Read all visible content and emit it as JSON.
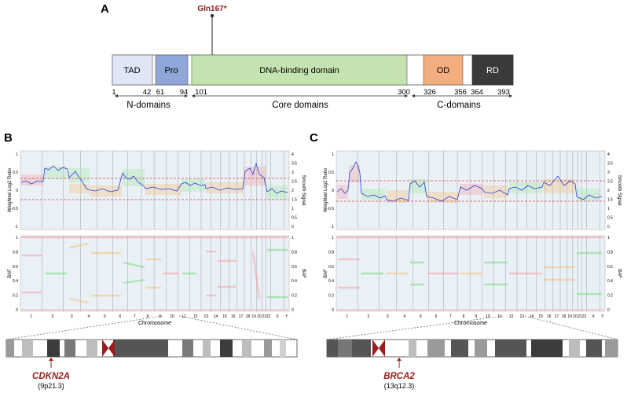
{
  "panel_a": {
    "label": "A",
    "mutation": "Gln167*",
    "domains": [
      {
        "name": "TAD",
        "start": "1",
        "end": "42",
        "color": "#dfe6f5"
      },
      {
        "name": "Pro",
        "start": "61",
        "end": "94",
        "color": "#8fa7d8"
      },
      {
        "name": "DNA-binding domain",
        "start": "101",
        "end": "300",
        "color": "#c5e3b0"
      },
      {
        "name": "OD",
        "start": "326",
        "end": "356",
        "color": "#f3ae80"
      },
      {
        "name": "RD",
        "start": "364",
        "end": "393",
        "color": "#3a3a3a"
      }
    ],
    "groups": [
      "N-domains",
      "Core domains",
      "C-domains"
    ]
  },
  "panel_b": {
    "label": "B",
    "y_left_label": "Weighted Log2 Ratio",
    "y_right_label": "Smooth Signal",
    "baf_label": "BAF",
    "x_label": "Chromosome",
    "gene": "CDKN2A",
    "locus": "(9p21.3)"
  },
  "panel_c": {
    "label": "C",
    "y_left_label": "Weighted Log2 Ratio",
    "y_right_label": "Smooth Signal",
    "baf_label": "BAF",
    "x_label": "Chromosome",
    "gene": "BRCA2",
    "locus": "(13q12.3)"
  },
  "axes": {
    "log2_ticks": [
      "1",
      "0.5",
      "0",
      "-0.5",
      "-1"
    ],
    "smooth_ticks": [
      "4",
      "3.5",
      "3",
      "2.5",
      "2",
      "1.5",
      "1",
      "0.5",
      "0"
    ],
    "baf_ticks": [
      "1",
      "0.8",
      "0.6",
      "0.4",
      "0.2",
      "0"
    ],
    "chromosomes": [
      "1",
      "2",
      "3",
      "4",
      "5",
      "6",
      "7",
      "8",
      "9",
      "10",
      "11",
      "12",
      "13",
      "14",
      "15",
      "16",
      "17",
      "18",
      "19",
      "20",
      "21",
      "22",
      "X",
      "Y"
    ]
  },
  "colors": {
    "accent": "#8b1a1a",
    "plot_bg": "#e9f0f6",
    "signal": "#2a3fd8"
  }
}
